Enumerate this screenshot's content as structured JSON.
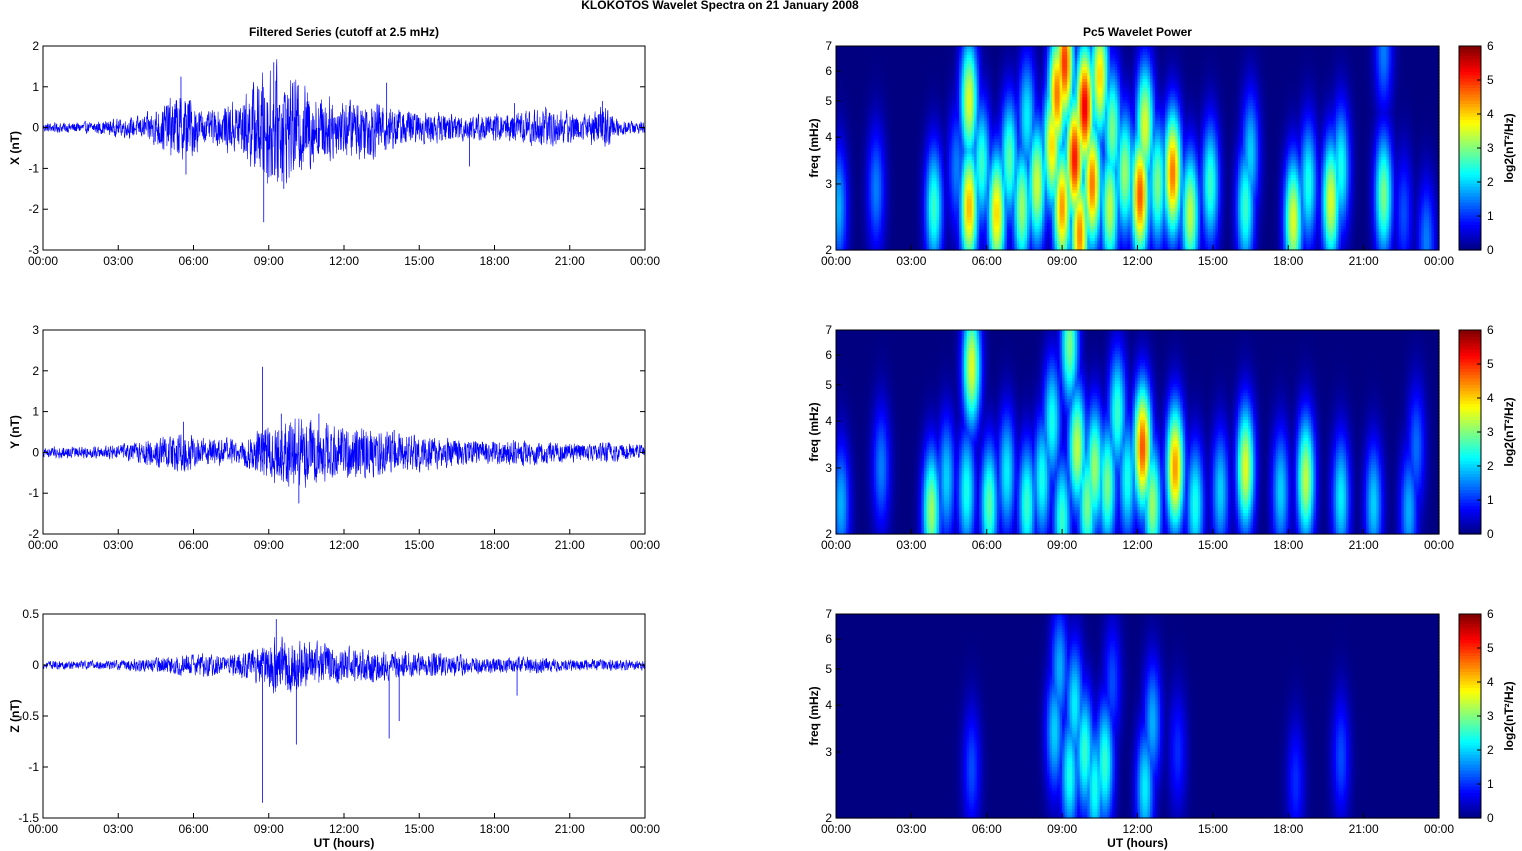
{
  "figure": {
    "title": "KLOKOTOS Wavelet Spectra on 21 January   2008",
    "left_title": "Filtered Series (cutoff at 2.5 mHz)",
    "right_title": "Pc5 Wavelet Power"
  },
  "chart_data": [
    {
      "type": "line",
      "panel": "X",
      "ylabel": "X (nT)",
      "xlabel": "",
      "xlim": [
        0,
        24
      ],
      "ylim": [
        -3,
        2
      ],
      "yticks": [
        "-3",
        "-2",
        "-1",
        "0",
        "1",
        "2"
      ],
      "xticks": [
        "00:00",
        "03:00",
        "06:00",
        "09:00",
        "12:00",
        "15:00",
        "18:00",
        "21:00",
        "00:00"
      ],
      "color": "#0000ff",
      "envelope": {
        "x": [
          0,
          2,
          4,
          5.3,
          5.8,
          6.5,
          8,
          8.8,
          9.2,
          9.8,
          10.3,
          11,
          12,
          13,
          14,
          15,
          17,
          18.5,
          20,
          21.5,
          22.4,
          23,
          24
        ],
        "y": [
          0.12,
          0.15,
          0.3,
          0.85,
          0.9,
          0.35,
          0.8,
          1.5,
          1.6,
          1.3,
          1.2,
          0.9,
          0.75,
          0.8,
          0.55,
          0.4,
          0.35,
          0.35,
          0.55,
          0.35,
          0.55,
          0.2,
          0.15
        ]
      },
      "spikes": [
        {
          "x": 5.5,
          "y": 1.25
        },
        {
          "x": 5.7,
          "y": -1.15
        },
        {
          "x": 8.8,
          "y": -2.32
        },
        {
          "x": 9.2,
          "y": 1.6
        },
        {
          "x": 9.6,
          "y": -1.5
        },
        {
          "x": 13.7,
          "y": 1.1
        },
        {
          "x": 17.0,
          "y": -0.95
        },
        {
          "x": 18.8,
          "y": 0.6
        },
        {
          "x": 22.3,
          "y": 0.65
        }
      ]
    },
    {
      "type": "line",
      "panel": "Y",
      "ylabel": "Y (nT)",
      "xlabel": "",
      "xlim": [
        0,
        24
      ],
      "ylim": [
        -2,
        3
      ],
      "yticks": [
        "-2",
        "-1",
        "0",
        "1",
        "2",
        "3"
      ],
      "xticks": [
        "00:00",
        "03:00",
        "06:00",
        "09:00",
        "12:00",
        "15:00",
        "18:00",
        "21:00",
        "00:00"
      ],
      "color": "#0000ff",
      "envelope": {
        "x": [
          0,
          2,
          3.5,
          5.5,
          6.5,
          8,
          9,
          10,
          11,
          12,
          13,
          14,
          15,
          16.5,
          18,
          19,
          20,
          22,
          22.5,
          24
        ],
        "y": [
          0.15,
          0.15,
          0.25,
          0.5,
          0.35,
          0.35,
          0.75,
          0.9,
          0.8,
          0.7,
          0.6,
          0.5,
          0.45,
          0.35,
          0.3,
          0.35,
          0.3,
          0.2,
          0.25,
          0.2
        ]
      },
      "spikes": [
        {
          "x": 8.75,
          "y": 2.1
        },
        {
          "x": 10.2,
          "y": -1.25
        },
        {
          "x": 9.5,
          "y": 0.95
        },
        {
          "x": 11.0,
          "y": 0.95
        },
        {
          "x": 5.6,
          "y": 0.75
        },
        {
          "x": 14.0,
          "y": 0.55
        }
      ]
    },
    {
      "type": "line",
      "panel": "Z",
      "ylabel": "Z (nT)",
      "xlabel": "UT (hours)",
      "xlim": [
        0,
        24
      ],
      "ylim": [
        -1.5,
        0.5
      ],
      "yticks": [
        "-1.5",
        "-1",
        "-0.5",
        "0",
        "0.5"
      ],
      "xticks": [
        "00:00",
        "03:00",
        "06:00",
        "09:00",
        "12:00",
        "15:00",
        "18:00",
        "21:00",
        "00:00"
      ],
      "color": "#0000ff",
      "envelope": {
        "x": [
          0,
          3,
          5,
          6,
          7.5,
          8.5,
          9.3,
          10,
          11,
          12,
          13,
          14,
          15,
          16,
          17,
          18,
          19,
          20,
          21,
          22,
          24
        ],
        "y": [
          0.04,
          0.05,
          0.09,
          0.12,
          0.1,
          0.2,
          0.3,
          0.28,
          0.22,
          0.18,
          0.18,
          0.14,
          0.12,
          0.12,
          0.09,
          0.08,
          0.08,
          0.08,
          0.06,
          0.06,
          0.05
        ]
      },
      "spikes": [
        {
          "x": 8.75,
          "y": -1.35
        },
        {
          "x": 10.1,
          "y": -0.78
        },
        {
          "x": 13.8,
          "y": -0.72
        },
        {
          "x": 9.3,
          "y": 0.45
        },
        {
          "x": 14.2,
          "y": -0.55
        },
        {
          "x": 18.9,
          "y": -0.3
        }
      ]
    },
    {
      "type": "heatmap",
      "panel": "X",
      "ylabel": "freq (mHz)",
      "xlabel": "",
      "xlim": [
        0,
        24
      ],
      "ylim": [
        2,
        7
      ],
      "yscale": "log",
      "yticks": [
        "2",
        "3",
        "4",
        "5",
        "6",
        "7"
      ],
      "xticks": [
        "00:00",
        "03:00",
        "06:00",
        "09:00",
        "12:00",
        "15:00",
        "18:00",
        "21:00",
        "00:00"
      ],
      "colorbar": {
        "label": "log2(nT²/Hz)",
        "ticks": [
          "0",
          "1",
          "2",
          "3",
          "4",
          "5",
          "6"
        ],
        "range": [
          0,
          6
        ]
      },
      "blobs": [
        [
          0.1,
          2.6,
          1.8
        ],
        [
          1.6,
          2.9,
          1.5
        ],
        [
          3.9,
          2.6,
          2.6
        ],
        [
          4.8,
          3.3,
          1.5
        ],
        [
          5.3,
          2.6,
          4.2
        ],
        [
          5.3,
          5.0,
          3.6
        ],
        [
          5.8,
          3.4,
          2.6
        ],
        [
          6.4,
          2.5,
          4.0
        ],
        [
          6.9,
          3.5,
          2.8
        ],
        [
          7.4,
          2.6,
          3.2
        ],
        [
          7.6,
          4.5,
          2.2
        ],
        [
          8.0,
          3.0,
          3.5
        ],
        [
          8.6,
          3.8,
          4.0
        ],
        [
          8.8,
          5.2,
          4.6
        ],
        [
          9.0,
          2.6,
          4.4
        ],
        [
          9.1,
          6.3,
          5.0
        ],
        [
          9.5,
          3.5,
          5.2
        ],
        [
          9.7,
          2.2,
          4.5
        ],
        [
          9.9,
          4.8,
          5.4
        ],
        [
          10.2,
          3.0,
          4.6
        ],
        [
          10.5,
          5.8,
          4.0
        ],
        [
          10.9,
          2.6,
          3.4
        ],
        [
          11.0,
          4.2,
          3.0
        ],
        [
          11.5,
          3.2,
          3.2
        ],
        [
          12.1,
          2.8,
          4.8
        ],
        [
          12.3,
          4.3,
          3.6
        ],
        [
          12.8,
          3.0,
          3.0
        ],
        [
          13.4,
          3.2,
          4.6
        ],
        [
          14.1,
          2.5,
          3.4
        ],
        [
          14.9,
          3.0,
          2.6
        ],
        [
          16.3,
          2.6,
          2.6
        ],
        [
          16.5,
          3.6,
          2.0
        ],
        [
          18.2,
          2.4,
          3.6
        ],
        [
          18.8,
          3.0,
          2.4
        ],
        [
          19.7,
          2.7,
          3.6
        ],
        [
          20.1,
          3.3,
          2.4
        ],
        [
          21.8,
          2.8,
          3.0
        ],
        [
          21.8,
          6.8,
          1.5
        ],
        [
          22.6,
          2.5,
          1.2
        ],
        [
          23.5,
          2.1,
          1.5
        ]
      ]
    },
    {
      "type": "heatmap",
      "panel": "Y",
      "ylabel": "freq (mHz)",
      "xlabel": "",
      "xlim": [
        0,
        24
      ],
      "ylim": [
        2,
        7
      ],
      "yscale": "log",
      "yticks": [
        "2",
        "3",
        "4",
        "5",
        "6",
        "7"
      ],
      "xticks": [
        "00:00",
        "03:00",
        "06:00",
        "09:00",
        "12:00",
        "15:00",
        "18:00",
        "21:00",
        "00:00"
      ],
      "colorbar": {
        "label": "log2(nT²/Hz)",
        "ticks": [
          "0",
          "1",
          "2",
          "3",
          "4",
          "5",
          "6"
        ],
        "range": [
          0,
          6
        ]
      },
      "blobs": [
        [
          0.2,
          2.4,
          1.8
        ],
        [
          1.8,
          3.0,
          1.5
        ],
        [
          3.8,
          2.3,
          3.2
        ],
        [
          4.4,
          2.8,
          2.0
        ],
        [
          5.2,
          2.6,
          2.4
        ],
        [
          5.4,
          5.6,
          3.6
        ],
        [
          6.1,
          2.4,
          2.8
        ],
        [
          6.8,
          2.9,
          2.2
        ],
        [
          7.6,
          2.4,
          2.6
        ],
        [
          8.2,
          2.8,
          2.4
        ],
        [
          8.6,
          4.0,
          2.4
        ],
        [
          9.0,
          2.2,
          2.6
        ],
        [
          9.3,
          6.4,
          3.0
        ],
        [
          9.6,
          3.4,
          3.4
        ],
        [
          10.0,
          2.4,
          3.0
        ],
        [
          10.3,
          3.0,
          3.2
        ],
        [
          10.8,
          2.7,
          3.0
        ],
        [
          11.2,
          4.2,
          2.6
        ],
        [
          11.6,
          2.8,
          2.4
        ],
        [
          12.2,
          3.4,
          4.8
        ],
        [
          12.6,
          2.4,
          3.2
        ],
        [
          13.5,
          3.0,
          4.4
        ],
        [
          14.3,
          2.4,
          2.4
        ],
        [
          15.3,
          2.6,
          2.0
        ],
        [
          16.3,
          3.0,
          3.6
        ],
        [
          17.7,
          2.6,
          2.0
        ],
        [
          18.7,
          2.8,
          3.4
        ],
        [
          20.1,
          2.5,
          2.2
        ],
        [
          21.4,
          2.4,
          2.0
        ],
        [
          22.8,
          2.3,
          1.8
        ],
        [
          23.1,
          3.4,
          1.4
        ]
      ]
    },
    {
      "type": "heatmap",
      "panel": "Z",
      "ylabel": "freq (mHz)",
      "xlabel": "UT (hours)",
      "xlim": [
        0,
        24
      ],
      "ylim": [
        2,
        7
      ],
      "yscale": "log",
      "yticks": [
        "2",
        "3",
        "4",
        "5",
        "6",
        "7"
      ],
      "xticks": [
        "00:00",
        "03:00",
        "06:00",
        "09:00",
        "12:00",
        "15:00",
        "18:00",
        "21:00",
        "00:00"
      ],
      "colorbar": {
        "label": "log2(nT²/Hz)",
        "ticks": [
          "0",
          "1",
          "2",
          "3",
          "4",
          "5",
          "6"
        ],
        "range": [
          0,
          6
        ]
      },
      "blobs": [
        [
          5.4,
          2.7,
          1.2
        ],
        [
          8.7,
          3.4,
          2.0
        ],
        [
          8.9,
          5.0,
          1.8
        ],
        [
          9.3,
          2.6,
          2.4
        ],
        [
          9.5,
          4.0,
          2.2
        ],
        [
          9.9,
          3.0,
          2.6
        ],
        [
          10.3,
          2.4,
          2.4
        ],
        [
          10.7,
          2.8,
          2.6
        ],
        [
          11.0,
          4.6,
          1.2
        ],
        [
          12.3,
          2.4,
          2.2
        ],
        [
          12.6,
          3.6,
          1.8
        ],
        [
          13.6,
          3.0,
          1.0
        ],
        [
          18.3,
          2.5,
          1.0
        ],
        [
          20.1,
          2.9,
          1.2
        ]
      ]
    }
  ]
}
